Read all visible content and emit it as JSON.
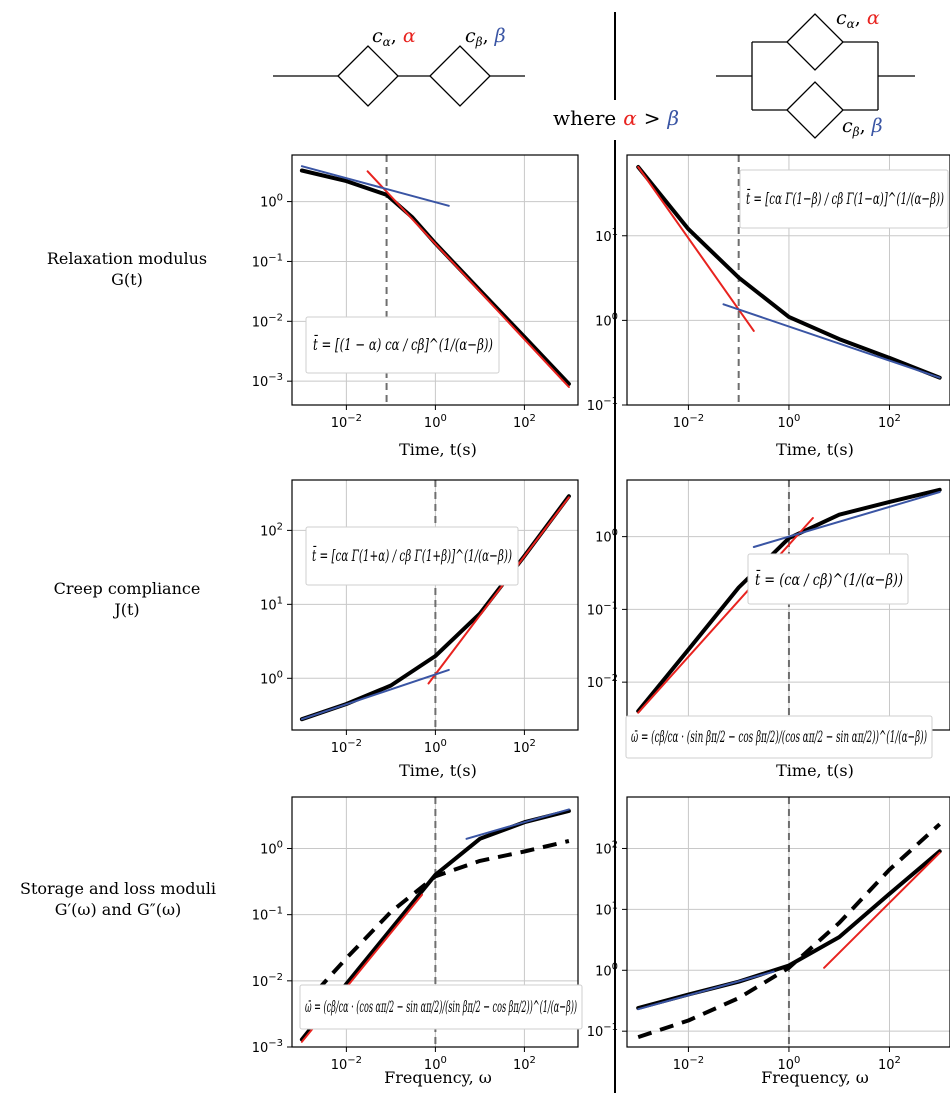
{
  "diagram": {
    "left": {
      "el1": {
        "c": "c",
        "csub": "α",
        "sep": ",",
        "p": "α",
        "pcolor": "#e8231f"
      },
      "el2": {
        "c": "c",
        "csub": "β",
        "sep": ",",
        "p": "β",
        "pcolor": "#3a55a4"
      }
    },
    "right": {
      "el1": {
        "c": "c",
        "csub": "α",
        "sep": ",",
        "p": "α",
        "pcolor": "#e8231f"
      },
      "el2": {
        "c": "c",
        "csub": "β",
        "sep": ",",
        "p": "β",
        "pcolor": "#3a55a4"
      }
    },
    "where": {
      "prefix": "where",
      "a": "α",
      "op": ">",
      "b": "β"
    }
  },
  "rows": [
    {
      "line1": "Relaxation modulus",
      "line2": "G(t)"
    },
    {
      "line1": "Creep compliance",
      "line2": "J(t)"
    },
    {
      "line1": "Storage and loss moduli",
      "line2": "G′(ω) and G″(ω)"
    }
  ],
  "colors": {
    "red": "#e8231f",
    "blue": "#3a55a4",
    "black": "#000000",
    "dashed_marker": "#6e6e6e"
  },
  "formulas": {
    "p1": "t̄ = [(1 − α) cα / cβ]^(1/(α−β))",
    "p2": "t̄ = [cα Γ(1−β) / cβ Γ(1−α)]^(1/(α−β))",
    "p3": "t̄ = [cα Γ(1+α) / cβ Γ(1+β)]^(1/(α−β))",
    "p4": "t̄ = (cα / cβ)^(1/(α−β))",
    "p5": "ω̄ = (cβ/cα · (cos απ/2 − sin απ/2)/(sin βπ/2 − cos βπ/2))^(1/(α−β))",
    "p6": "ω̄ = (cβ/cα · (sin βπ/2 − cos βπ/2)/(cos απ/2 − sin απ/2))^(1/(α−β))"
  },
  "chart_data": [
    {
      "id": "p1",
      "type": "line",
      "xlabel": "Time, t(s)",
      "ylabel": "",
      "xscale": "log",
      "yscale": "log",
      "xlim": [
        0.0006,
        1600
      ],
      "ylim": [
        0.0004,
        6
      ],
      "xticks": [
        0.01,
        1,
        100
      ],
      "xticklabels": [
        "10^-2",
        "10^0",
        "10^2"
      ],
      "yticks": [
        0.001,
        0.01,
        0.1,
        1
      ],
      "yticklabels": [
        "10^-3",
        "10^-2",
        "10^-1",
        "10^0"
      ],
      "grid": true,
      "vline": 0.08,
      "series": [
        {
          "color": "#000000",
          "style": "solid",
          "width": 4,
          "x": [
            0.001,
            0.01,
            0.08,
            0.3,
            1,
            10,
            100,
            1000
          ],
          "y": [
            3.3,
            2.2,
            1.3,
            0.55,
            0.2,
            0.033,
            0.0055,
            0.0009
          ]
        },
        {
          "color": "#e8231f",
          "style": "solid",
          "width": 2,
          "x": [
            0.03,
            1000
          ],
          "y": [
            3.2,
            0.0008
          ]
        },
        {
          "color": "#3a55a4",
          "style": "solid",
          "width": 2,
          "x": [
            0.001,
            2
          ],
          "y": [
            3.9,
            0.85
          ]
        }
      ]
    },
    {
      "id": "p2",
      "type": "line",
      "xlabel": "Time, t(s)",
      "ylabel": "",
      "xscale": "log",
      "yscale": "log",
      "xlim": [
        0.0006,
        1600
      ],
      "ylim": [
        0.1,
        90
      ],
      "xticks": [
        0.01,
        1,
        100
      ],
      "xticklabels": [
        "10^-2",
        "10^0",
        "10^2"
      ],
      "yticks": [
        0.1,
        1,
        10
      ],
      "yticklabels": [
        "10^-1",
        "10^0",
        "10^1"
      ],
      "grid": true,
      "vline": 0.1,
      "series": [
        {
          "color": "#000000",
          "style": "solid",
          "width": 4,
          "x": [
            0.001,
            0.01,
            0.1,
            1,
            10,
            100,
            1000
          ],
          "y": [
            65,
            12,
            3.2,
            1.1,
            0.6,
            0.36,
            0.21
          ]
        },
        {
          "color": "#e8231f",
          "style": "solid",
          "width": 2,
          "x": [
            0.001,
            0.2
          ],
          "y": [
            65,
            0.75
          ]
        },
        {
          "color": "#3a55a4",
          "style": "solid",
          "width": 2,
          "x": [
            0.05,
            1000
          ],
          "y": [
            1.55,
            0.21
          ]
        }
      ]
    },
    {
      "id": "p3",
      "type": "line",
      "xlabel": "Time, t(s)",
      "ylabel": "",
      "xscale": "log",
      "yscale": "log",
      "xlim": [
        0.0006,
        1600
      ],
      "ylim": [
        0.2,
        480
      ],
      "xticks": [
        0.01,
        1,
        100
      ],
      "xticklabels": [
        "10^-2",
        "10^0",
        "10^2"
      ],
      "yticks": [
        1,
        10,
        100
      ],
      "yticklabels": [
        "10^0",
        "10^1",
        "10^2"
      ],
      "grid": true,
      "vline": 1,
      "series": [
        {
          "color": "#000000",
          "style": "solid",
          "width": 4,
          "x": [
            0.001,
            0.01,
            0.1,
            1,
            10,
            100,
            1000
          ],
          "y": [
            0.28,
            0.45,
            0.8,
            2,
            7.5,
            45,
            290
          ]
        },
        {
          "color": "#e8231f",
          "style": "solid",
          "width": 2,
          "x": [
            0.7,
            1000
          ],
          "y": [
            0.85,
            280
          ]
        },
        {
          "color": "#3a55a4",
          "style": "solid",
          "width": 2,
          "x": [
            0.001,
            2
          ],
          "y": [
            0.28,
            1.3
          ]
        }
      ]
    },
    {
      "id": "p4",
      "type": "line",
      "xlabel": "Time, t(s)",
      "ylabel": "",
      "xscale": "log",
      "yscale": "log",
      "xlim": [
        0.0006,
        1600
      ],
      "ylim": [
        0.0022,
        6
      ],
      "xticks": [
        0.01,
        1,
        100
      ],
      "xticklabels": [
        "10^-2",
        "10^0",
        "10^2"
      ],
      "yticks": [
        0.01,
        0.1,
        1
      ],
      "yticklabels": [
        "10^-2",
        "10^-1",
        "10^0"
      ],
      "grid": true,
      "vline": 1,
      "series": [
        {
          "color": "#000000",
          "style": "solid",
          "width": 4,
          "x": [
            0.001,
            0.01,
            0.1,
            1,
            10,
            100,
            1000
          ],
          "y": [
            0.004,
            0.028,
            0.2,
            0.95,
            2.0,
            3.0,
            4.4
          ]
        },
        {
          "color": "#e8231f",
          "style": "solid",
          "width": 2,
          "x": [
            0.001,
            3
          ],
          "y": [
            0.0038,
            1.8
          ]
        },
        {
          "color": "#3a55a4",
          "style": "solid",
          "width": 2,
          "x": [
            0.2,
            1000
          ],
          "y": [
            0.72,
            4.1
          ]
        }
      ]
    },
    {
      "id": "p5",
      "type": "line",
      "xlabel": "Frequency, ω",
      "ylabel": "",
      "xscale": "log",
      "yscale": "log",
      "xlim": [
        0.0006,
        1600
      ],
      "ylim": [
        0.001,
        6
      ],
      "xticks": [
        0.01,
        1,
        100
      ],
      "xticklabels": [
        "10^-2",
        "10^0",
        "10^2"
      ],
      "yticks": [
        0.001,
        0.01,
        0.1,
        1
      ],
      "yticklabels": [
        "10^-3",
        "10^-2",
        "10^-1",
        "10^0"
      ],
      "grid": true,
      "vline": 1,
      "series": [
        {
          "color": "#000000",
          "style": "solid",
          "width": 4,
          "x": [
            0.001,
            0.01,
            0.1,
            1,
            10,
            100,
            1000
          ],
          "y": [
            0.0013,
            0.009,
            0.06,
            0.4,
            1.4,
            2.5,
            3.7
          ]
        },
        {
          "color": "#000000",
          "style": "dashed",
          "width": 4,
          "x": [
            0.001,
            0.01,
            0.1,
            1,
            10,
            100,
            1000
          ],
          "y": [
            0.004,
            0.022,
            0.11,
            0.38,
            0.65,
            0.9,
            1.3
          ]
        },
        {
          "color": "#e8231f",
          "style": "solid",
          "width": 2,
          "x": [
            0.001,
            0.5
          ],
          "y": [
            0.0012,
            0.2
          ]
        },
        {
          "color": "#3a55a4",
          "style": "solid",
          "width": 2,
          "x": [
            5,
            1000
          ],
          "y": [
            1.4,
            3.9
          ]
        }
      ]
    },
    {
      "id": "p6",
      "type": "line",
      "xlabel": "Frequency, ω",
      "ylabel": "",
      "xscale": "log",
      "yscale": "log",
      "xlim": [
        0.0006,
        1600
      ],
      "ylim": [
        0.055,
        700
      ],
      "xticks": [
        0.01,
        1,
        100
      ],
      "xticklabels": [
        "10^-2",
        "10^0",
        "10^2"
      ],
      "yticks": [
        0.1,
        1,
        10,
        100
      ],
      "yticklabels": [
        "10^-1",
        "10^0",
        "10^1",
        "10^2"
      ],
      "grid": true,
      "vline": 1,
      "series": [
        {
          "color": "#000000",
          "style": "solid",
          "width": 4,
          "x": [
            0.001,
            0.01,
            0.1,
            1,
            10,
            100,
            1000
          ],
          "y": [
            0.24,
            0.4,
            0.65,
            1.2,
            3.5,
            18,
            90
          ]
        },
        {
          "color": "#000000",
          "style": "dashed",
          "width": 4,
          "x": [
            0.001,
            0.01,
            0.1,
            1,
            10,
            100,
            1000
          ],
          "y": [
            0.08,
            0.15,
            0.35,
            1.1,
            6,
            45,
            250
          ]
        },
        {
          "color": "#e8231f",
          "style": "solid",
          "width": 2,
          "x": [
            5,
            1000
          ],
          "y": [
            1.1,
            85
          ]
        },
        {
          "color": "#3a55a4",
          "style": "solid",
          "width": 2,
          "x": [
            0.001,
            0.5
          ],
          "y": [
            0.23,
            0.95
          ]
        }
      ]
    }
  ]
}
